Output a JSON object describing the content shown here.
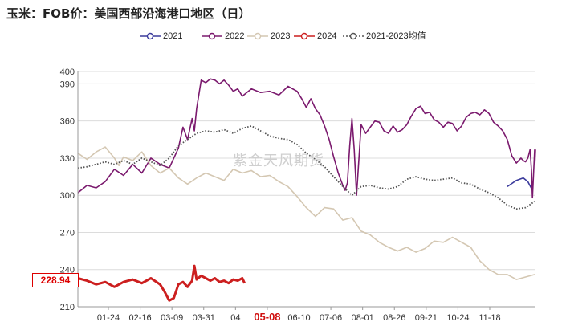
{
  "header": {
    "title": "玉米：FOB价：美国西部沿海港口地区（日）"
  },
  "watermark": "紫金天风期货",
  "chart_data": {
    "type": "line",
    "y_ticks": [
      210,
      240,
      270,
      300,
      330,
      360,
      390,
      400
    ],
    "ylim": [
      210,
      400
    ],
    "x_ticks": [
      "01-24",
      "02-16",
      "03-09",
      "03-31",
      "04",
      "05-08",
      "06-10",
      "07-06",
      "08-01",
      "08-26",
      "09-21",
      "10-24",
      "11-18"
    ],
    "x_highlight": "05-08",
    "last_value_label": "228.94",
    "grid": "horizontal",
    "legend_position": "top",
    "series": [
      {
        "name": "2021",
        "color": "#3b3b9c",
        "style": "solid",
        "points": [
          [
            0.94,
            307
          ],
          [
            0.96,
            312
          ],
          [
            0.975,
            314
          ],
          [
            0.985,
            311
          ],
          [
            0.995,
            304
          ]
        ]
      },
      {
        "name": "2022",
        "color": "#7b1a6e",
        "style": "solid",
        "points": [
          [
            0.0,
            302
          ],
          [
            0.02,
            308
          ],
          [
            0.04,
            306
          ],
          [
            0.06,
            311
          ],
          [
            0.08,
            321
          ],
          [
            0.1,
            316
          ],
          [
            0.12,
            325
          ],
          [
            0.14,
            318
          ],
          [
            0.16,
            330
          ],
          [
            0.18,
            325
          ],
          [
            0.2,
            322
          ],
          [
            0.22,
            338
          ],
          [
            0.23,
            355
          ],
          [
            0.24,
            345
          ],
          [
            0.25,
            362
          ],
          [
            0.255,
            352
          ],
          [
            0.26,
            370
          ],
          [
            0.27,
            393
          ],
          [
            0.28,
            391
          ],
          [
            0.29,
            394
          ],
          [
            0.3,
            393
          ],
          [
            0.31,
            390
          ],
          [
            0.32,
            393
          ],
          [
            0.33,
            389
          ],
          [
            0.34,
            384
          ],
          [
            0.35,
            386
          ],
          [
            0.36,
            380
          ],
          [
            0.38,
            386
          ],
          [
            0.4,
            383
          ],
          [
            0.42,
            384
          ],
          [
            0.44,
            381
          ],
          [
            0.46,
            388
          ],
          [
            0.48,
            384
          ],
          [
            0.49,
            378
          ],
          [
            0.5,
            371
          ],
          [
            0.51,
            378
          ],
          [
            0.52,
            370
          ],
          [
            0.53,
            365
          ],
          [
            0.54,
            356
          ],
          [
            0.55,
            345
          ],
          [
            0.56,
            331
          ],
          [
            0.57,
            318
          ],
          [
            0.58,
            308
          ],
          [
            0.585,
            304
          ],
          [
            0.59,
            310
          ],
          [
            0.595,
            340
          ],
          [
            0.6,
            362
          ],
          [
            0.605,
            337
          ],
          [
            0.61,
            300
          ],
          [
            0.62,
            357
          ],
          [
            0.63,
            350
          ],
          [
            0.64,
            355
          ],
          [
            0.65,
            360
          ],
          [
            0.66,
            359
          ],
          [
            0.67,
            352
          ],
          [
            0.68,
            350
          ],
          [
            0.69,
            356
          ],
          [
            0.7,
            351
          ],
          [
            0.71,
            353
          ],
          [
            0.72,
            357
          ],
          [
            0.73,
            364
          ],
          [
            0.74,
            370
          ],
          [
            0.75,
            372
          ],
          [
            0.76,
            366
          ],
          [
            0.77,
            367
          ],
          [
            0.78,
            361
          ],
          [
            0.79,
            359
          ],
          [
            0.8,
            355
          ],
          [
            0.81,
            359
          ],
          [
            0.82,
            358
          ],
          [
            0.83,
            352
          ],
          [
            0.84,
            356
          ],
          [
            0.85,
            363
          ],
          [
            0.86,
            366
          ],
          [
            0.87,
            367
          ],
          [
            0.88,
            365
          ],
          [
            0.89,
            369
          ],
          [
            0.9,
            366
          ],
          [
            0.91,
            359
          ],
          [
            0.92,
            356
          ],
          [
            0.93,
            352
          ],
          [
            0.94,
            345
          ],
          [
            0.95,
            332
          ],
          [
            0.96,
            326
          ],
          [
            0.97,
            330
          ],
          [
            0.975,
            328
          ],
          [
            0.98,
            327
          ],
          [
            0.985,
            330
          ],
          [
            0.99,
            337
          ],
          [
            0.993,
            320
          ],
          [
            0.995,
            298
          ],
          [
            1.0,
            337
          ]
        ]
      },
      {
        "name": "2023",
        "color": "#d4c7b2",
        "style": "solid",
        "points": [
          [
            0.0,
            334
          ],
          [
            0.02,
            329
          ],
          [
            0.04,
            335
          ],
          [
            0.06,
            339
          ],
          [
            0.08,
            330
          ],
          [
            0.09,
            324
          ],
          [
            0.1,
            331
          ],
          [
            0.12,
            328
          ],
          [
            0.14,
            335
          ],
          [
            0.16,
            324
          ],
          [
            0.18,
            318
          ],
          [
            0.2,
            322
          ],
          [
            0.22,
            314
          ],
          [
            0.24,
            309
          ],
          [
            0.26,
            314
          ],
          [
            0.28,
            318
          ],
          [
            0.3,
            315
          ],
          [
            0.32,
            312
          ],
          [
            0.34,
            321
          ],
          [
            0.36,
            318
          ],
          [
            0.38,
            320
          ],
          [
            0.4,
            315
          ],
          [
            0.42,
            316
          ],
          [
            0.44,
            311
          ],
          [
            0.46,
            307
          ],
          [
            0.48,
            299
          ],
          [
            0.5,
            290
          ],
          [
            0.52,
            283
          ],
          [
            0.54,
            290
          ],
          [
            0.56,
            289
          ],
          [
            0.58,
            280
          ],
          [
            0.6,
            282
          ],
          [
            0.62,
            271
          ],
          [
            0.64,
            268
          ],
          [
            0.66,
            262
          ],
          [
            0.68,
            258
          ],
          [
            0.7,
            255
          ],
          [
            0.72,
            258
          ],
          [
            0.74,
            254
          ],
          [
            0.76,
            257
          ],
          [
            0.78,
            263
          ],
          [
            0.8,
            262
          ],
          [
            0.82,
            266
          ],
          [
            0.84,
            262
          ],
          [
            0.86,
            258
          ],
          [
            0.88,
            247
          ],
          [
            0.9,
            240
          ],
          [
            0.92,
            236
          ],
          [
            0.94,
            236
          ],
          [
            0.96,
            232
          ],
          [
            0.98,
            234
          ],
          [
            1.0,
            236
          ]
        ]
      },
      {
        "name": "2024",
        "color": "#cc1f1f",
        "style": "solid",
        "points": [
          [
            0.0,
            233
          ],
          [
            0.02,
            231
          ],
          [
            0.04,
            228
          ],
          [
            0.06,
            230
          ],
          [
            0.08,
            226
          ],
          [
            0.1,
            230
          ],
          [
            0.12,
            232
          ],
          [
            0.14,
            229
          ],
          [
            0.16,
            233
          ],
          [
            0.18,
            228
          ],
          [
            0.19,
            222
          ],
          [
            0.2,
            215
          ],
          [
            0.21,
            217
          ],
          [
            0.22,
            228
          ],
          [
            0.23,
            230
          ],
          [
            0.24,
            226
          ],
          [
            0.25,
            231
          ],
          [
            0.255,
            243
          ],
          [
            0.26,
            232
          ],
          [
            0.27,
            235
          ],
          [
            0.28,
            233
          ],
          [
            0.29,
            231
          ],
          [
            0.3,
            233
          ],
          [
            0.31,
            230
          ],
          [
            0.32,
            231
          ],
          [
            0.33,
            229
          ],
          [
            0.34,
            232
          ],
          [
            0.35,
            231
          ],
          [
            0.36,
            233
          ],
          [
            0.365,
            228.94
          ]
        ]
      },
      {
        "name": "2021-2023均值",
        "color": "#555555",
        "style": "dotted",
        "points": [
          [
            0.0,
            322
          ],
          [
            0.02,
            323
          ],
          [
            0.04,
            325
          ],
          [
            0.06,
            327
          ],
          [
            0.08,
            325
          ],
          [
            0.1,
            328
          ],
          [
            0.12,
            325
          ],
          [
            0.14,
            330
          ],
          [
            0.16,
            327
          ],
          [
            0.18,
            324
          ],
          [
            0.2,
            330
          ],
          [
            0.22,
            340
          ],
          [
            0.24,
            345
          ],
          [
            0.26,
            350
          ],
          [
            0.28,
            352
          ],
          [
            0.3,
            351
          ],
          [
            0.32,
            353
          ],
          [
            0.34,
            350
          ],
          [
            0.36,
            354
          ],
          [
            0.38,
            356
          ],
          [
            0.4,
            352
          ],
          [
            0.42,
            348
          ],
          [
            0.44,
            346
          ],
          [
            0.46,
            345
          ],
          [
            0.48,
            341
          ],
          [
            0.5,
            334
          ],
          [
            0.52,
            329
          ],
          [
            0.54,
            323
          ],
          [
            0.56,
            315
          ],
          [
            0.58,
            307
          ],
          [
            0.6,
            300
          ],
          [
            0.62,
            307
          ],
          [
            0.64,
            308
          ],
          [
            0.66,
            306
          ],
          [
            0.68,
            305
          ],
          [
            0.7,
            307
          ],
          [
            0.72,
            313
          ],
          [
            0.74,
            315
          ],
          [
            0.76,
            313
          ],
          [
            0.78,
            312
          ],
          [
            0.8,
            313
          ],
          [
            0.82,
            314
          ],
          [
            0.84,
            310
          ],
          [
            0.86,
            309
          ],
          [
            0.88,
            305
          ],
          [
            0.9,
            302
          ],
          [
            0.92,
            298
          ],
          [
            0.94,
            292
          ],
          [
            0.96,
            289
          ],
          [
            0.98,
            290
          ],
          [
            1.0,
            295
          ]
        ]
      }
    ]
  }
}
